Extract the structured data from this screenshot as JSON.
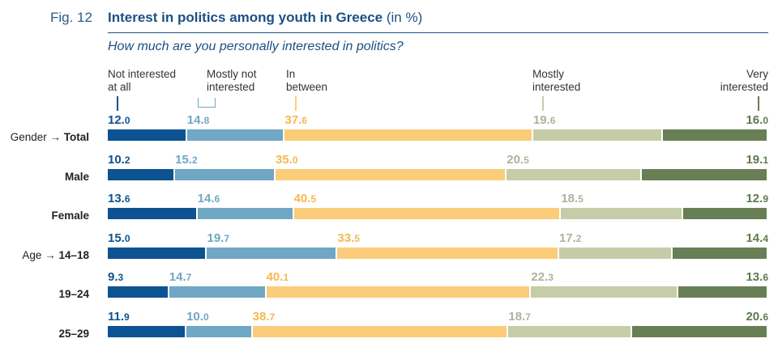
{
  "figure": {
    "label": "Fig. 12",
    "title": "Interest in politics among youth in Greece",
    "title_unit": "(in %)",
    "subtitle": "How much are you personally interested in politics?"
  },
  "colors": {
    "title": "#1c4f86",
    "not_interested_at_all": "#0d5291",
    "mostly_not_interested": "#6fa7c4",
    "in_between": "#fbcc79",
    "mostly_interested": "#c5cda8",
    "very_interested": "#687f55"
  },
  "chart_data": {
    "type": "bar",
    "orientation": "horizontal",
    "stacked": true,
    "unit": "%",
    "categories": [
      "Total",
      "Male",
      "Female",
      "14–18",
      "19–24",
      "25–29"
    ],
    "row_groups": [
      {
        "name": "Gender",
        "rows": [
          "Total",
          "Male",
          "Female"
        ]
      },
      {
        "name": "Age",
        "rows": [
          "14–18",
          "19–24",
          "25–29"
        ]
      }
    ],
    "series": [
      {
        "name": "Not interested at all",
        "label_lines": [
          "Not interested",
          "at all"
        ],
        "color": "#0d5291",
        "label_color": "#0d5291",
        "values": [
          12.0,
          10.2,
          13.6,
          15.0,
          9.3,
          11.9
        ]
      },
      {
        "name": "Mostly not interested",
        "label_lines": [
          "Mostly not",
          "interested"
        ],
        "color": "#6fa7c4",
        "label_color": "#6fa7c4",
        "values": [
          14.8,
          15.2,
          14.6,
          19.7,
          14.7,
          10.0
        ]
      },
      {
        "name": "In between",
        "label_lines": [
          "In",
          "between"
        ],
        "color": "#fbcc79",
        "label_color": "#f5b84f",
        "values": [
          37.6,
          35.0,
          40.5,
          33.5,
          40.1,
          38.7
        ]
      },
      {
        "name": "Mostly interested",
        "label_lines": [
          "Mostly",
          "interested"
        ],
        "color": "#c5cda8",
        "label_color": "#aab59b",
        "values": [
          19.6,
          20.5,
          18.5,
          17.2,
          22.3,
          18.7
        ]
      },
      {
        "name": "Very interested",
        "label_lines": [
          "Very",
          "interested"
        ],
        "color": "#687f55",
        "label_color": "#5f7a4a",
        "values": [
          16.0,
          19.1,
          12.9,
          14.4,
          13.6,
          20.6
        ]
      }
    ]
  }
}
